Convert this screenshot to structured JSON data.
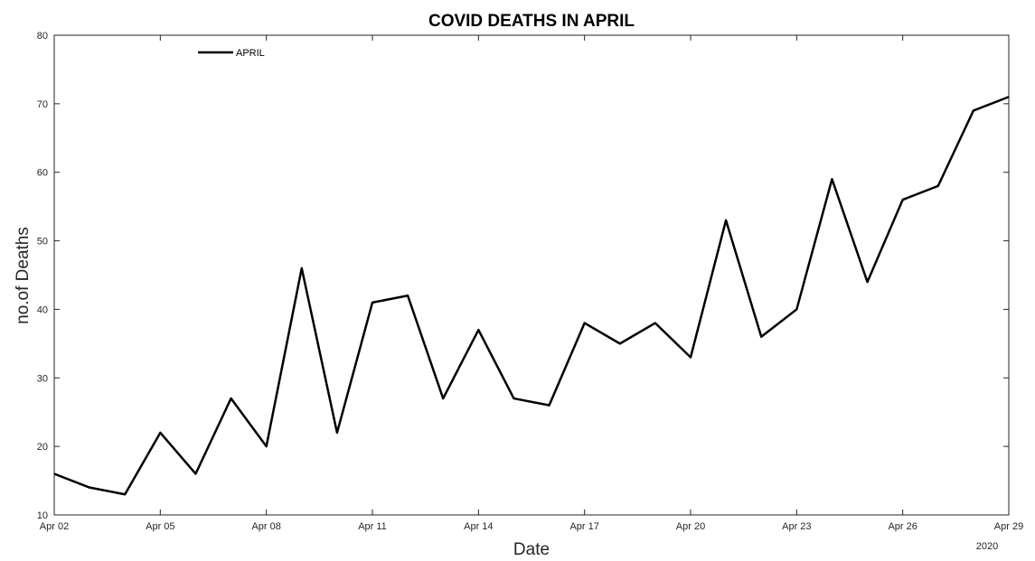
{
  "chart_data": {
    "type": "line",
    "title": "COVID DEATHS IN APRIL",
    "xlabel": "Date",
    "ylabel": "no.of Deaths",
    "x_year_label": "2020",
    "ylim": [
      10,
      80
    ],
    "xlim": [
      "Apr 02",
      "Apr 29"
    ],
    "x_ticks": [
      "Apr 02",
      "Apr 05",
      "Apr 08",
      "Apr 11",
      "Apr 14",
      "Apr 17",
      "Apr 20",
      "Apr 23",
      "Apr 26",
      "Apr 29"
    ],
    "y_ticks": [
      10,
      20,
      30,
      40,
      50,
      60,
      70,
      80
    ],
    "grid": false,
    "legend_position": "top-left",
    "series": [
      {
        "name": "APRIL",
        "color": "#000000",
        "x": [
          "Apr 02",
          "Apr 03",
          "Apr 04",
          "Apr 05",
          "Apr 06",
          "Apr 07",
          "Apr 08",
          "Apr 09",
          "Apr 10",
          "Apr 11",
          "Apr 12",
          "Apr 13",
          "Apr 14",
          "Apr 15",
          "Apr 16",
          "Apr 17",
          "Apr 18",
          "Apr 19",
          "Apr 20",
          "Apr 21",
          "Apr 22",
          "Apr 23",
          "Apr 24",
          "Apr 25",
          "Apr 26",
          "Apr 27",
          "Apr 28",
          "Apr 29"
        ],
        "values": [
          16,
          14,
          13,
          22,
          16,
          27,
          20,
          46,
          22,
          41,
          42,
          27,
          37,
          27,
          26,
          38,
          35,
          38,
          33,
          53,
          36,
          40,
          59,
          44,
          56,
          58,
          69,
          71
        ]
      }
    ]
  }
}
